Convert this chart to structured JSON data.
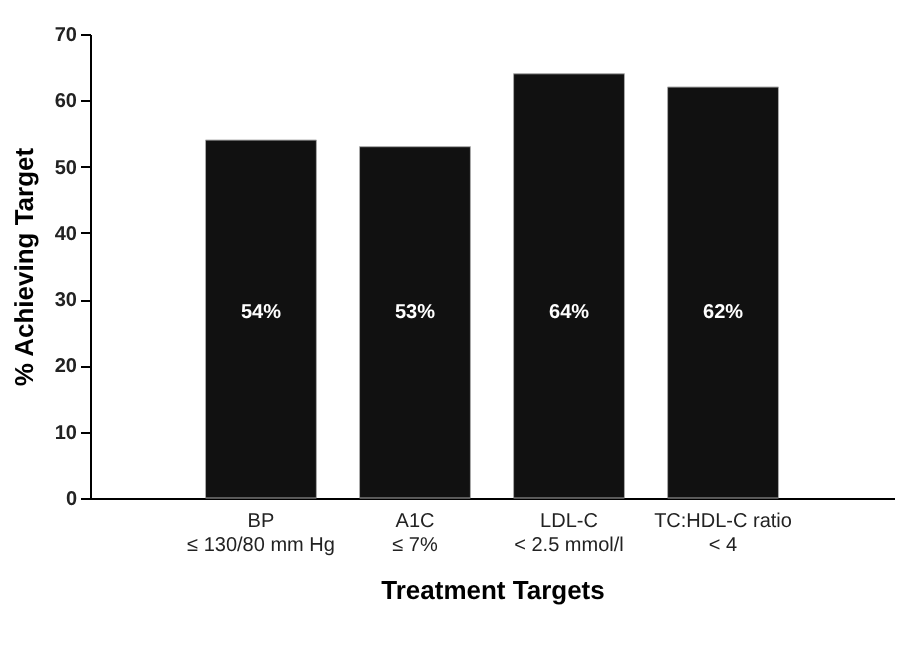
{
  "chart_data": {
    "type": "bar",
    "xlabel": "Treatment Targets",
    "ylabel": "% Achieving Target",
    "categories": [
      "BP\n≤ 130/80 mm Hg",
      "A1C\n≤ 7%",
      "LDL-C\n< 2.5 mmol/l",
      "TC:HDL-C ratio\n< 4"
    ],
    "values": [
      54,
      53,
      64,
      62
    ],
    "value_labels": [
      "54%",
      "53%",
      "64%",
      "62%"
    ],
    "color": "#111111",
    "ylim": [
      0,
      70
    ],
    "yticks": [
      0,
      10,
      20,
      30,
      40,
      50,
      60,
      70
    ],
    "grid": false
  }
}
